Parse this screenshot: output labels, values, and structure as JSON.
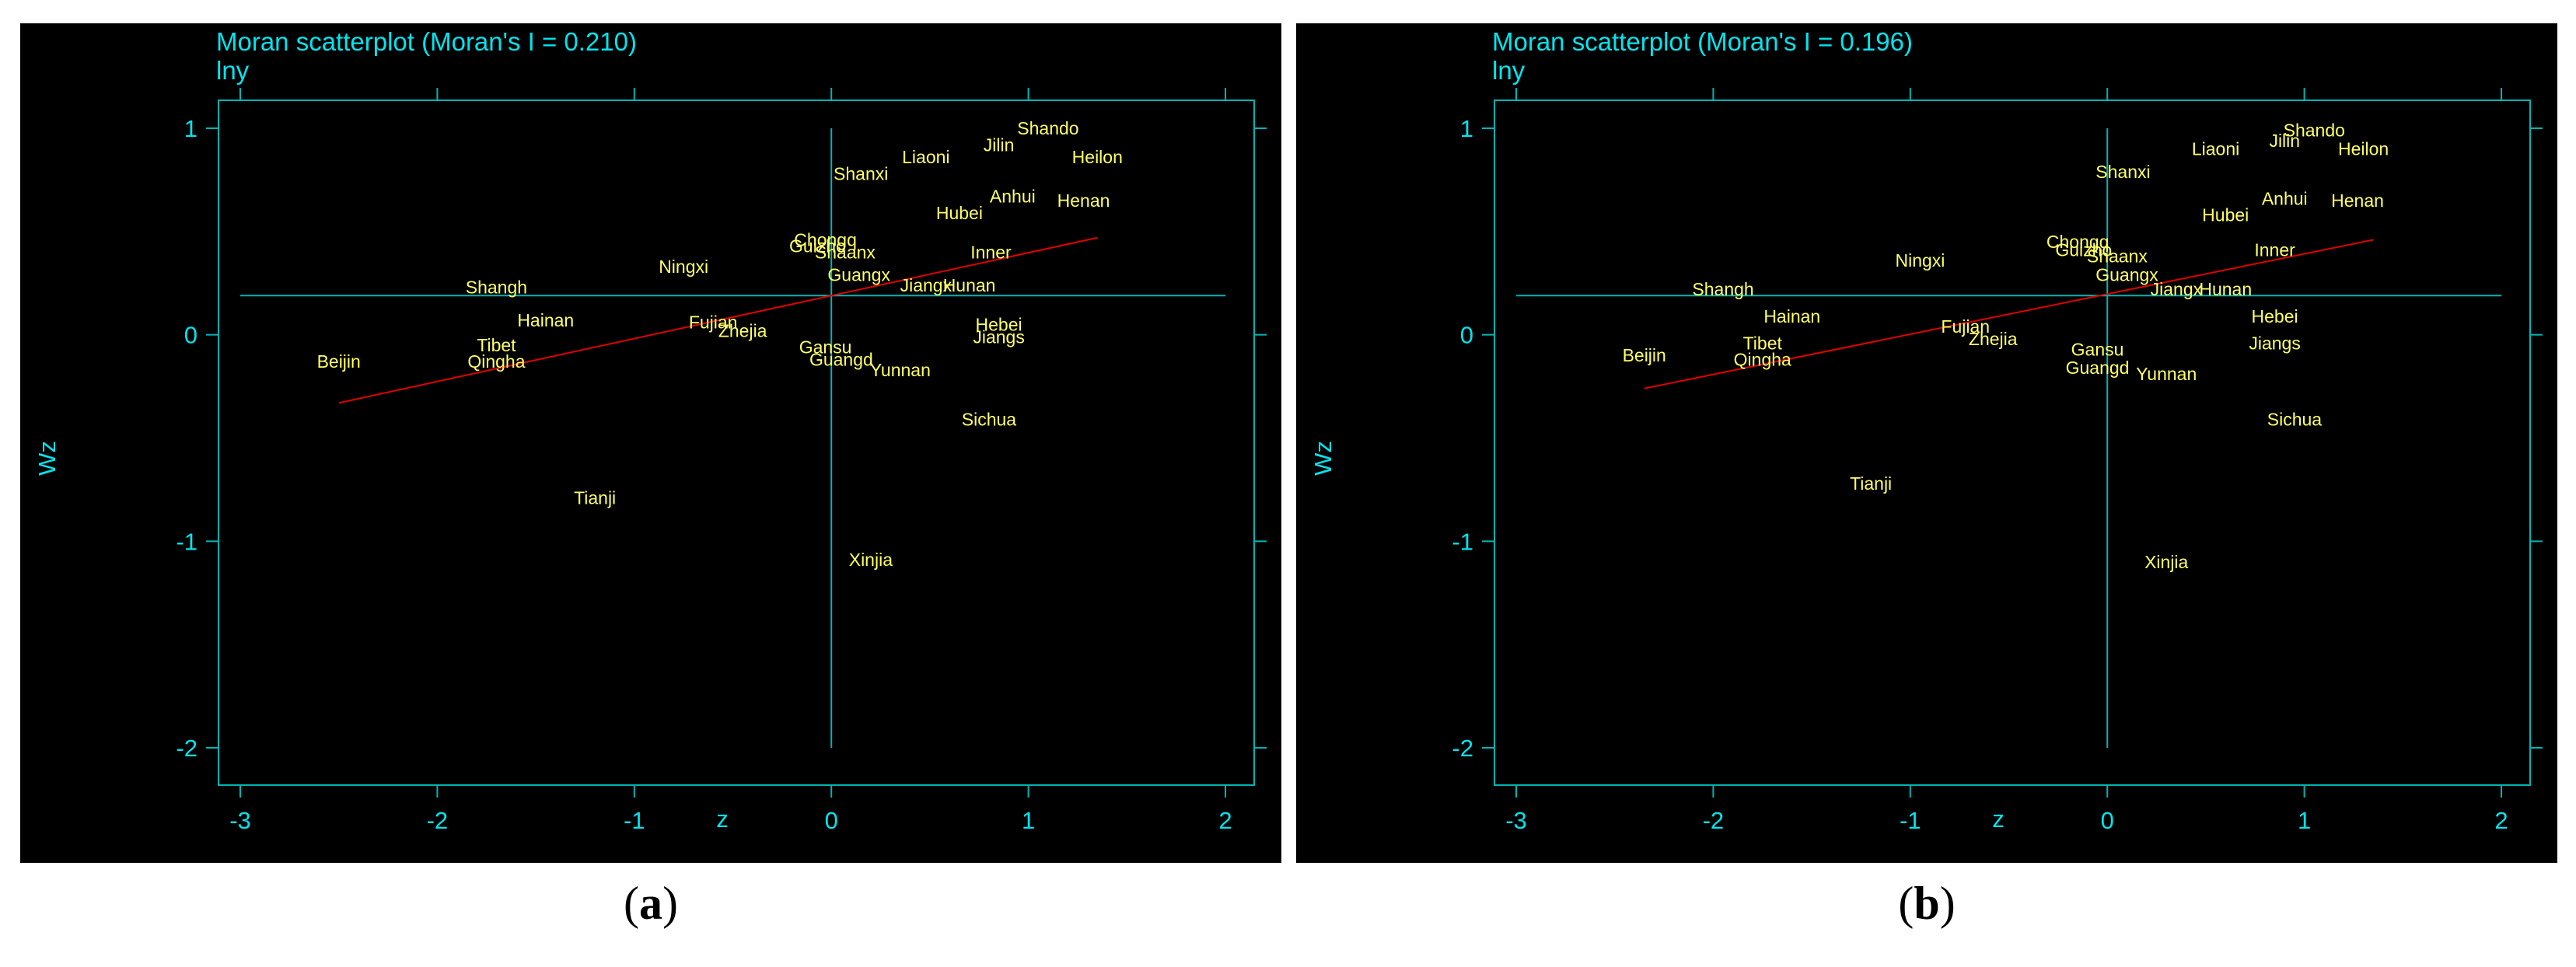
{
  "colors": {
    "background": "#000000",
    "axis": "#00b4b4",
    "text": "#00e5ee",
    "point_labels": "#ffff66",
    "fit_line": "#e00000"
  },
  "chart_data": [
    {
      "type": "scatter",
      "title": "Moran scatterplot (Moran's I = 0.210)",
      "subtitle": "lny",
      "xlabel": "z",
      "ylabel": "Wz",
      "xlim": [
        -3,
        2
      ],
      "ylim": [
        -2,
        1
      ],
      "xticks": [
        "-3",
        "-2",
        "-1",
        "0",
        "1",
        "2"
      ],
      "yticks": [
        "-2",
        "-1",
        "0",
        "1"
      ],
      "reference_lines": {
        "x": 0,
        "y": 0.19
      },
      "fit_line": {
        "x": [
          -2.5,
          1.35
        ],
        "y": [
          -0.33,
          0.47
        ]
      },
      "points": [
        {
          "label": "Shando",
          "x": 1.1,
          "y": 1.0
        },
        {
          "label": "Jilin",
          "x": 0.85,
          "y": 0.92
        },
        {
          "label": "Heilon",
          "x": 1.35,
          "y": 0.86
        },
        {
          "label": "Liaoni",
          "x": 0.48,
          "y": 0.86
        },
        {
          "label": "Shanxi",
          "x": 0.15,
          "y": 0.78
        },
        {
          "label": "Anhui",
          "x": 0.92,
          "y": 0.67
        },
        {
          "label": "Henan",
          "x": 1.28,
          "y": 0.65
        },
        {
          "label": "Hubei",
          "x": 0.65,
          "y": 0.59
        },
        {
          "label": "Chongq",
          "x": -0.03,
          "y": 0.46
        },
        {
          "label": "Guizho",
          "x": -0.07,
          "y": 0.43
        },
        {
          "label": "Shaanx",
          "x": 0.07,
          "y": 0.4
        },
        {
          "label": "Inner",
          "x": 0.81,
          "y": 0.4
        },
        {
          "label": "Ningxi",
          "x": -0.75,
          "y": 0.33
        },
        {
          "label": "Guangx",
          "x": 0.14,
          "y": 0.29
        },
        {
          "label": "Jiangx",
          "x": 0.48,
          "y": 0.24
        },
        {
          "label": "Hunan",
          "x": 0.7,
          "y": 0.24
        },
        {
          "label": "Shangh",
          "x": -1.7,
          "y": 0.23
        },
        {
          "label": "Hainan",
          "x": -1.45,
          "y": 0.07
        },
        {
          "label": "Fujian",
          "x": -0.6,
          "y": 0.06
        },
        {
          "label": "Zhejia",
          "x": -0.45,
          "y": 0.02
        },
        {
          "label": "Hebei",
          "x": 0.85,
          "y": 0.05
        },
        {
          "label": "Jiangs",
          "x": 0.85,
          "y": -0.01
        },
        {
          "label": "Tibet",
          "x": -1.7,
          "y": -0.05
        },
        {
          "label": "Gansu",
          "x": -0.03,
          "y": -0.06
        },
        {
          "label": "Guangd",
          "x": 0.05,
          "y": -0.12
        },
        {
          "label": "Beijin",
          "x": -2.5,
          "y": -0.13
        },
        {
          "label": "Qingha",
          "x": -1.7,
          "y": -0.13
        },
        {
          "label": "Yunnan",
          "x": 0.35,
          "y": -0.17
        },
        {
          "label": "Sichua",
          "x": 0.8,
          "y": -0.41
        },
        {
          "label": "Tianji",
          "x": -1.2,
          "y": -0.79
        },
        {
          "label": "Xinjia",
          "x": 0.2,
          "y": -1.09
        }
      ]
    },
    {
      "type": "scatter",
      "title": "Moran scatterplot (Moran's I = 0.196)",
      "subtitle": "lny",
      "xlabel": "z",
      "ylabel": "Wz",
      "xlim": [
        -3,
        2
      ],
      "ylim": [
        -2,
        1
      ],
      "xticks": [
        "-3",
        "-2",
        "-1",
        "0",
        "1",
        "2"
      ],
      "yticks": [
        "-2",
        "-1",
        "0",
        "1"
      ],
      "reference_lines": {
        "x": 0,
        "y": 0.19
      },
      "fit_line": {
        "x": [
          -2.35,
          1.35
        ],
        "y": [
          -0.26,
          0.46
        ]
      },
      "points": [
        {
          "label": "Shando",
          "x": 1.05,
          "y": 0.99
        },
        {
          "label": "Jilin",
          "x": 0.9,
          "y": 0.94
        },
        {
          "label": "Heilon",
          "x": 1.3,
          "y": 0.9
        },
        {
          "label": "Liaoni",
          "x": 0.55,
          "y": 0.9
        },
        {
          "label": "Shanxi",
          "x": 0.08,
          "y": 0.79
        },
        {
          "label": "Anhui",
          "x": 0.9,
          "y": 0.66
        },
        {
          "label": "Henan",
          "x": 1.27,
          "y": 0.65
        },
        {
          "label": "Hubei",
          "x": 0.6,
          "y": 0.58
        },
        {
          "label": "Chongq",
          "x": -0.15,
          "y": 0.45
        },
        {
          "label": "Guizho",
          "x": -0.12,
          "y": 0.41
        },
        {
          "label": "Shaanx",
          "x": 0.05,
          "y": 0.38
        },
        {
          "label": "Inner",
          "x": 0.85,
          "y": 0.41
        },
        {
          "label": "Ningxi",
          "x": -0.95,
          "y": 0.36
        },
        {
          "label": "Guangx",
          "x": 0.1,
          "y": 0.29
        },
        {
          "label": "Jiangx",
          "x": 0.35,
          "y": 0.22
        },
        {
          "label": "Hunan",
          "x": 0.6,
          "y": 0.22
        },
        {
          "label": "Shangh",
          "x": -1.95,
          "y": 0.22
        },
        {
          "label": "Hainan",
          "x": -1.6,
          "y": 0.09
        },
        {
          "label": "Fujian",
          "x": -0.72,
          "y": 0.04
        },
        {
          "label": "Zhejia",
          "x": -0.58,
          "y": -0.02
        },
        {
          "label": "Hebei",
          "x": 0.85,
          "y": 0.09
        },
        {
          "label": "Jiangs",
          "x": 0.85,
          "y": -0.04
        },
        {
          "label": "Tibet",
          "x": -1.75,
          "y": -0.04
        },
        {
          "label": "Gansu",
          "x": -0.05,
          "y": -0.07
        },
        {
          "label": "Guangd",
          "x": -0.05,
          "y": -0.16
        },
        {
          "label": "Beijin",
          "x": -2.35,
          "y": -0.1
        },
        {
          "label": "Qingha",
          "x": -1.75,
          "y": -0.12
        },
        {
          "label": "Yunnan",
          "x": 0.3,
          "y": -0.19
        },
        {
          "label": "Sichua",
          "x": 0.95,
          "y": -0.41
        },
        {
          "label": "Tianji",
          "x": -1.2,
          "y": -0.72
        },
        {
          "label": "Xinjia",
          "x": 0.3,
          "y": -1.1
        }
      ]
    }
  ],
  "captions": [
    {
      "open": "(",
      "letter": "a",
      "close": ")"
    },
    {
      "open": "(",
      "letter": "b",
      "close": ")"
    }
  ]
}
